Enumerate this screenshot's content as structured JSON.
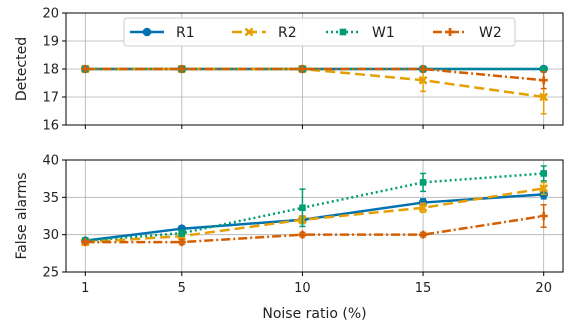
{
  "chart_data": [
    {
      "type": "line",
      "ylabel": "Detected",
      "xlabel": "",
      "ylim": [
        16,
        20
      ],
      "yticks": [
        16,
        17,
        18,
        19,
        20
      ],
      "x": [
        1,
        5,
        10,
        15,
        20
      ],
      "grid": true,
      "legend": "top",
      "series": [
        {
          "name": "R1",
          "values": [
            18,
            18,
            18,
            18,
            18
          ],
          "err": [
            0,
            0,
            0,
            0,
            0
          ]
        },
        {
          "name": "R2",
          "values": [
            18,
            18,
            18,
            17.6,
            17.0
          ],
          "err": [
            0,
            0,
            0,
            0.4,
            0.6
          ]
        },
        {
          "name": "W1",
          "values": [
            18,
            18,
            18,
            18,
            18
          ],
          "err": [
            0,
            0,
            0,
            0,
            0
          ]
        },
        {
          "name": "W2",
          "values": [
            18,
            18,
            18,
            18,
            17.6
          ],
          "err": [
            0,
            0,
            0,
            0,
            0.3
          ]
        }
      ]
    },
    {
      "type": "line",
      "ylabel": "False alarms",
      "xlabel": "Noise ratio (%)",
      "ylim": [
        25,
        40
      ],
      "yticks": [
        25,
        30,
        35,
        40
      ],
      "x": [
        1,
        5,
        10,
        15,
        20
      ],
      "xticks": [
        "1",
        "5",
        "10",
        "15",
        "20"
      ],
      "grid": true,
      "series": [
        {
          "name": "R1",
          "values": [
            29.2,
            30.8,
            32.0,
            34.3,
            35.4
          ],
          "err": [
            0.3,
            0.3,
            0.5,
            0.5,
            0.6
          ]
        },
        {
          "name": "R2",
          "values": [
            29.0,
            29.8,
            32.0,
            33.6,
            36.2
          ],
          "err": [
            0.3,
            0.5,
            0.5,
            0.6,
            0.8
          ]
        },
        {
          "name": "W1",
          "values": [
            29.2,
            30.2,
            33.6,
            37.0,
            38.2
          ],
          "err": [
            0.3,
            0.4,
            2.5,
            1.2,
            1.0
          ]
        },
        {
          "name": "W2",
          "values": [
            29.0,
            29.0,
            30.0,
            30.0,
            32.5
          ],
          "err": [
            0.2,
            0.3,
            0.3,
            0.3,
            1.5
          ]
        }
      ]
    }
  ],
  "styles": {
    "R1": {
      "color": "#0072b2",
      "dash": "",
      "marker": "circle"
    },
    "R2": {
      "color": "#e69f00",
      "dash": "10 5",
      "marker": "x"
    },
    "W1": {
      "color": "#009e73",
      "dash": "2 3",
      "marker": "square"
    },
    "W2": {
      "color": "#d55e00",
      "dash": "9 3 2 3",
      "marker": "plus"
    }
  }
}
